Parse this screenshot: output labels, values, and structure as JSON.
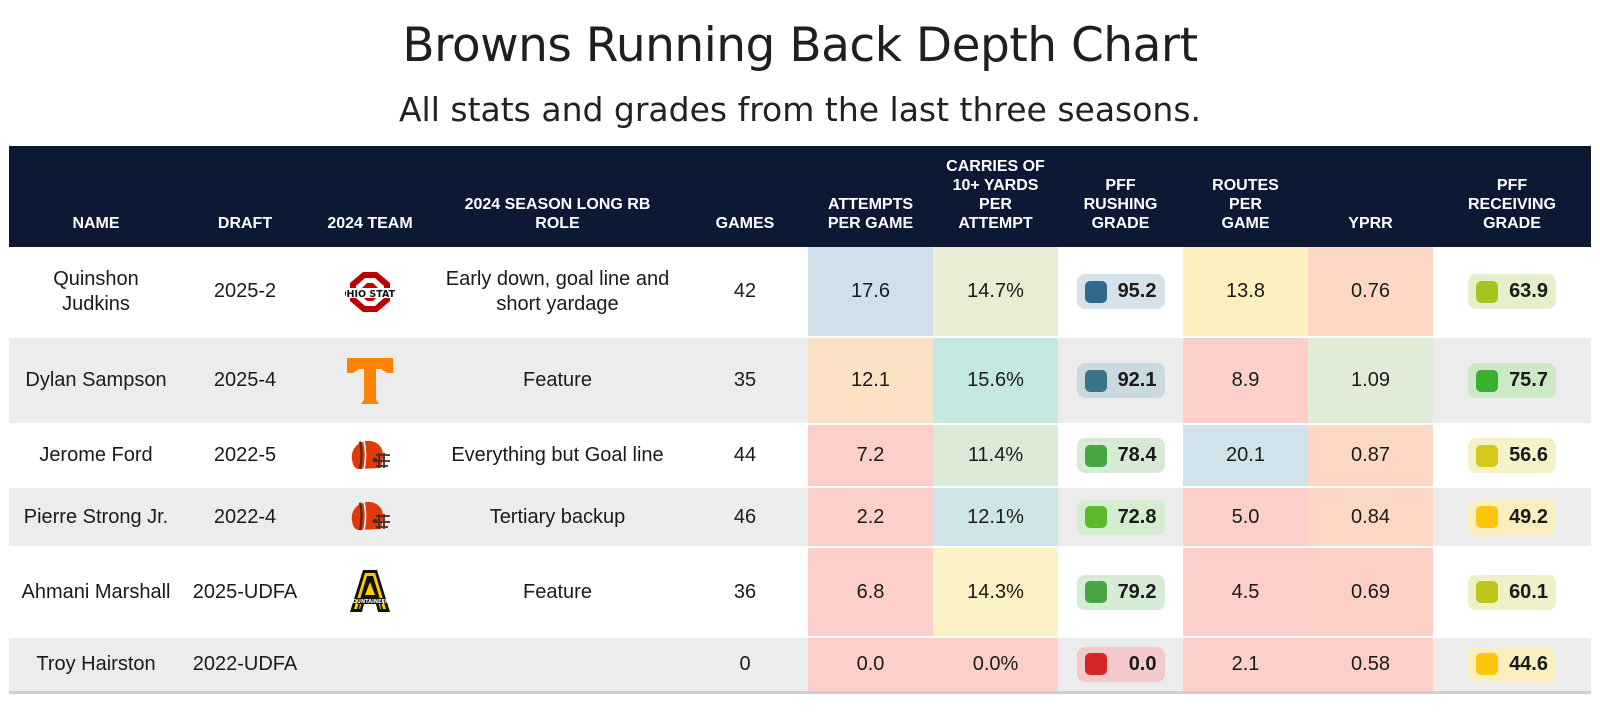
{
  "title": "Browns Running Back Depth Chart",
  "subtitle": "All stats and grades from the last three seasons.",
  "chart_data": {
    "type": "table",
    "columns": [
      "NAME",
      "DRAFT",
      "2024 TEAM",
      "2024 SEASON LONG RB ROLE",
      "GAMES",
      "ATTEMPTS PER GAME",
      "CARRIES OF 10+ YARDS PER ATTEMPT",
      "PFF RUSHING GRADE",
      "ROUTES PER GAME",
      "YPRR",
      "PFF RECEIVING GRADE"
    ],
    "rows": [
      {
        "name": "Quinshon Judkins",
        "draft": "2025-2",
        "team_logo": "ohio-state-logo",
        "role": "Early down, goal line and short yardage",
        "games": "42",
        "att": "17.6",
        "carries10": "14.7%",
        "rush": "95.2",
        "routes": "13.8",
        "yprr": "0.76",
        "recv": "63.9"
      },
      {
        "name": "Dylan Sampson",
        "draft": "2025-4",
        "team_logo": "tennessee-logo",
        "role": "Feature",
        "games": "35",
        "att": "12.1",
        "carries10": "15.6%",
        "rush": "92.1",
        "routes": "8.9",
        "yprr": "1.09",
        "recv": "75.7"
      },
      {
        "name": "Jerome Ford",
        "draft": "2022-5",
        "team_logo": "browns-helmet-logo",
        "role": "Everything but Goal line",
        "games": "44",
        "att": "7.2",
        "carries10": "11.4%",
        "rush": "78.4",
        "routes": "20.1",
        "yprr": "0.87",
        "recv": "56.6"
      },
      {
        "name": "Pierre Strong Jr.",
        "draft": "2022-4",
        "team_logo": "browns-helmet-logo",
        "role": "Tertiary backup",
        "games": "46",
        "att": "2.2",
        "carries10": "12.1%",
        "rush": "72.8",
        "routes": "5.0",
        "yprr": "0.84",
        "recv": "49.2"
      },
      {
        "name": "Ahmani Marshall",
        "draft": "2025-UDFA",
        "team_logo": "appalachian-state-logo",
        "role": "Feature",
        "games": "36",
        "att": "6.8",
        "carries10": "14.3%",
        "rush": "79.2",
        "routes": "4.5",
        "yprr": "0.69",
        "recv": "60.1"
      },
      {
        "name": "Troy Hairston",
        "draft": "2022-UDFA",
        "team_logo": "",
        "role": "",
        "games": "0",
        "att": "0.0",
        "carries10": "0.0%",
        "rush": "0.0",
        "routes": "2.1",
        "yprr": "0.58",
        "recv": "44.6"
      }
    ]
  },
  "colors": {
    "header_bg": "#0c1834",
    "att": [
      "#cfe0ea",
      "#fde1c4",
      "#fccfcb",
      "#fccfcb",
      "#fccfcb",
      "#fccfcb"
    ],
    "carries10": [
      "#e8edd4",
      "#c3e8df",
      "#dcebd7",
      "#cfe5e7",
      "#fbf0c6",
      "#fccfcb"
    ],
    "routes": [
      "#fdf0c0",
      "#fccfcb",
      "#d0e2ea",
      "#fccfcb",
      "#fccfcb",
      "#fccfcb"
    ],
    "yprr": [
      "#fdd9c5",
      "#e0ebd8",
      "#fdd9c5",
      "#fdd9c5",
      "#fdd0c5",
      "#fccfcb"
    ],
    "rush_pill_bg": [
      "#d5e2ea",
      "#cad9df",
      "#d5ebd4",
      "#d6ecd0",
      "#d5ebd4",
      "#f3c9c9"
    ],
    "rush_swatch": [
      "#2f6a8c",
      "#3c7288",
      "#46a442",
      "#5eb92d",
      "#46a442",
      "#d42527"
    ],
    "recv_pill_bg": [
      "#e6efcb",
      "#cde8c7",
      "#f5f1c8",
      "#faeebf",
      "#eef0c8",
      "#faeebf"
    ],
    "recv_swatch": [
      "#a5c51e",
      "#39b02e",
      "#d3c91b",
      "#fbc60a",
      "#bdc61a",
      "#fbc60a"
    ]
  }
}
